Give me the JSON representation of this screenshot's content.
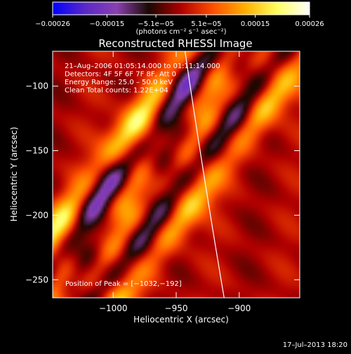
{
  "chart_data": {
    "type": "heatmap",
    "title": "Reconstructed RHESSI Image",
    "xlabel": "Heliocentric X (arcsec)",
    "ylabel": "Heliocentric Y (arcsec)",
    "xlim": [
      -1048,
      -852
    ],
    "ylim": [
      -264,
      -73
    ],
    "x_ticks": [
      -1000,
      -950,
      -900
    ],
    "x_tick_labels": [
      "−1000",
      "−950",
      "−900"
    ],
    "y_ticks": [
      -100,
      -150,
      -200,
      -250
    ],
    "y_tick_labels": [
      "−100",
      "−150",
      "−200",
      "−250"
    ],
    "colorbar": {
      "range": [
        -0.00026,
        0.00026
      ],
      "ticks": [
        -0.00026,
        -0.00015,
        -5.1e-05,
        5.1e-05,
        0.00015,
        0.00026
      ],
      "tick_labels": [
        "−0.00026",
        "−0.00015",
        "−5.1e−05",
        "5.1e−05",
        "0.00015",
        "0.00026"
      ],
      "unit": "(photons cm⁻² s⁻¹ asec⁻²)",
      "colors": [
        "#0000ff",
        "#5a28c8",
        "#8a40b0",
        "#1a0800",
        "#b00000",
        "#ff5000",
        "#ffb000",
        "#ffff60",
        "#ffffff"
      ]
    },
    "info_lines": [
      "21–Aug–2006 01:05:14.000 to 01:11:14.000",
      "Detectors: 4F 5F 6F 7F 8F, Att 0",
      "Energy Range: 25.0 – 50.0 keV",
      "Clean     Total counts: 1.22E+04"
    ],
    "peak_label": "Position of Peak = [−1032,−192]",
    "peak": {
      "x": -1032,
      "y": -192
    },
    "limb_curve": [
      {
        "x": -943,
        "y": -73
      },
      {
        "x": -930,
        "y": -160
      },
      {
        "x": -912,
        "y": -264
      }
    ],
    "stripes": [
      {
        "x": -1045,
        "y": -212,
        "amp": 1.0
      },
      {
        "x": -1010,
        "y": -186,
        "amp": -1.0
      },
      {
        "x": -985,
        "y": -178,
        "amp": 0.9
      },
      {
        "x": -958,
        "y": -155,
        "amp": -0.9
      },
      {
        "x": -935,
        "y": -140,
        "amp": 0.85
      },
      {
        "x": -905,
        "y": -126,
        "amp": -0.8
      },
      {
        "x": -878,
        "y": -112,
        "amp": 0.8
      }
    ]
  },
  "timestamp": "17–Jul–2013 18:20"
}
